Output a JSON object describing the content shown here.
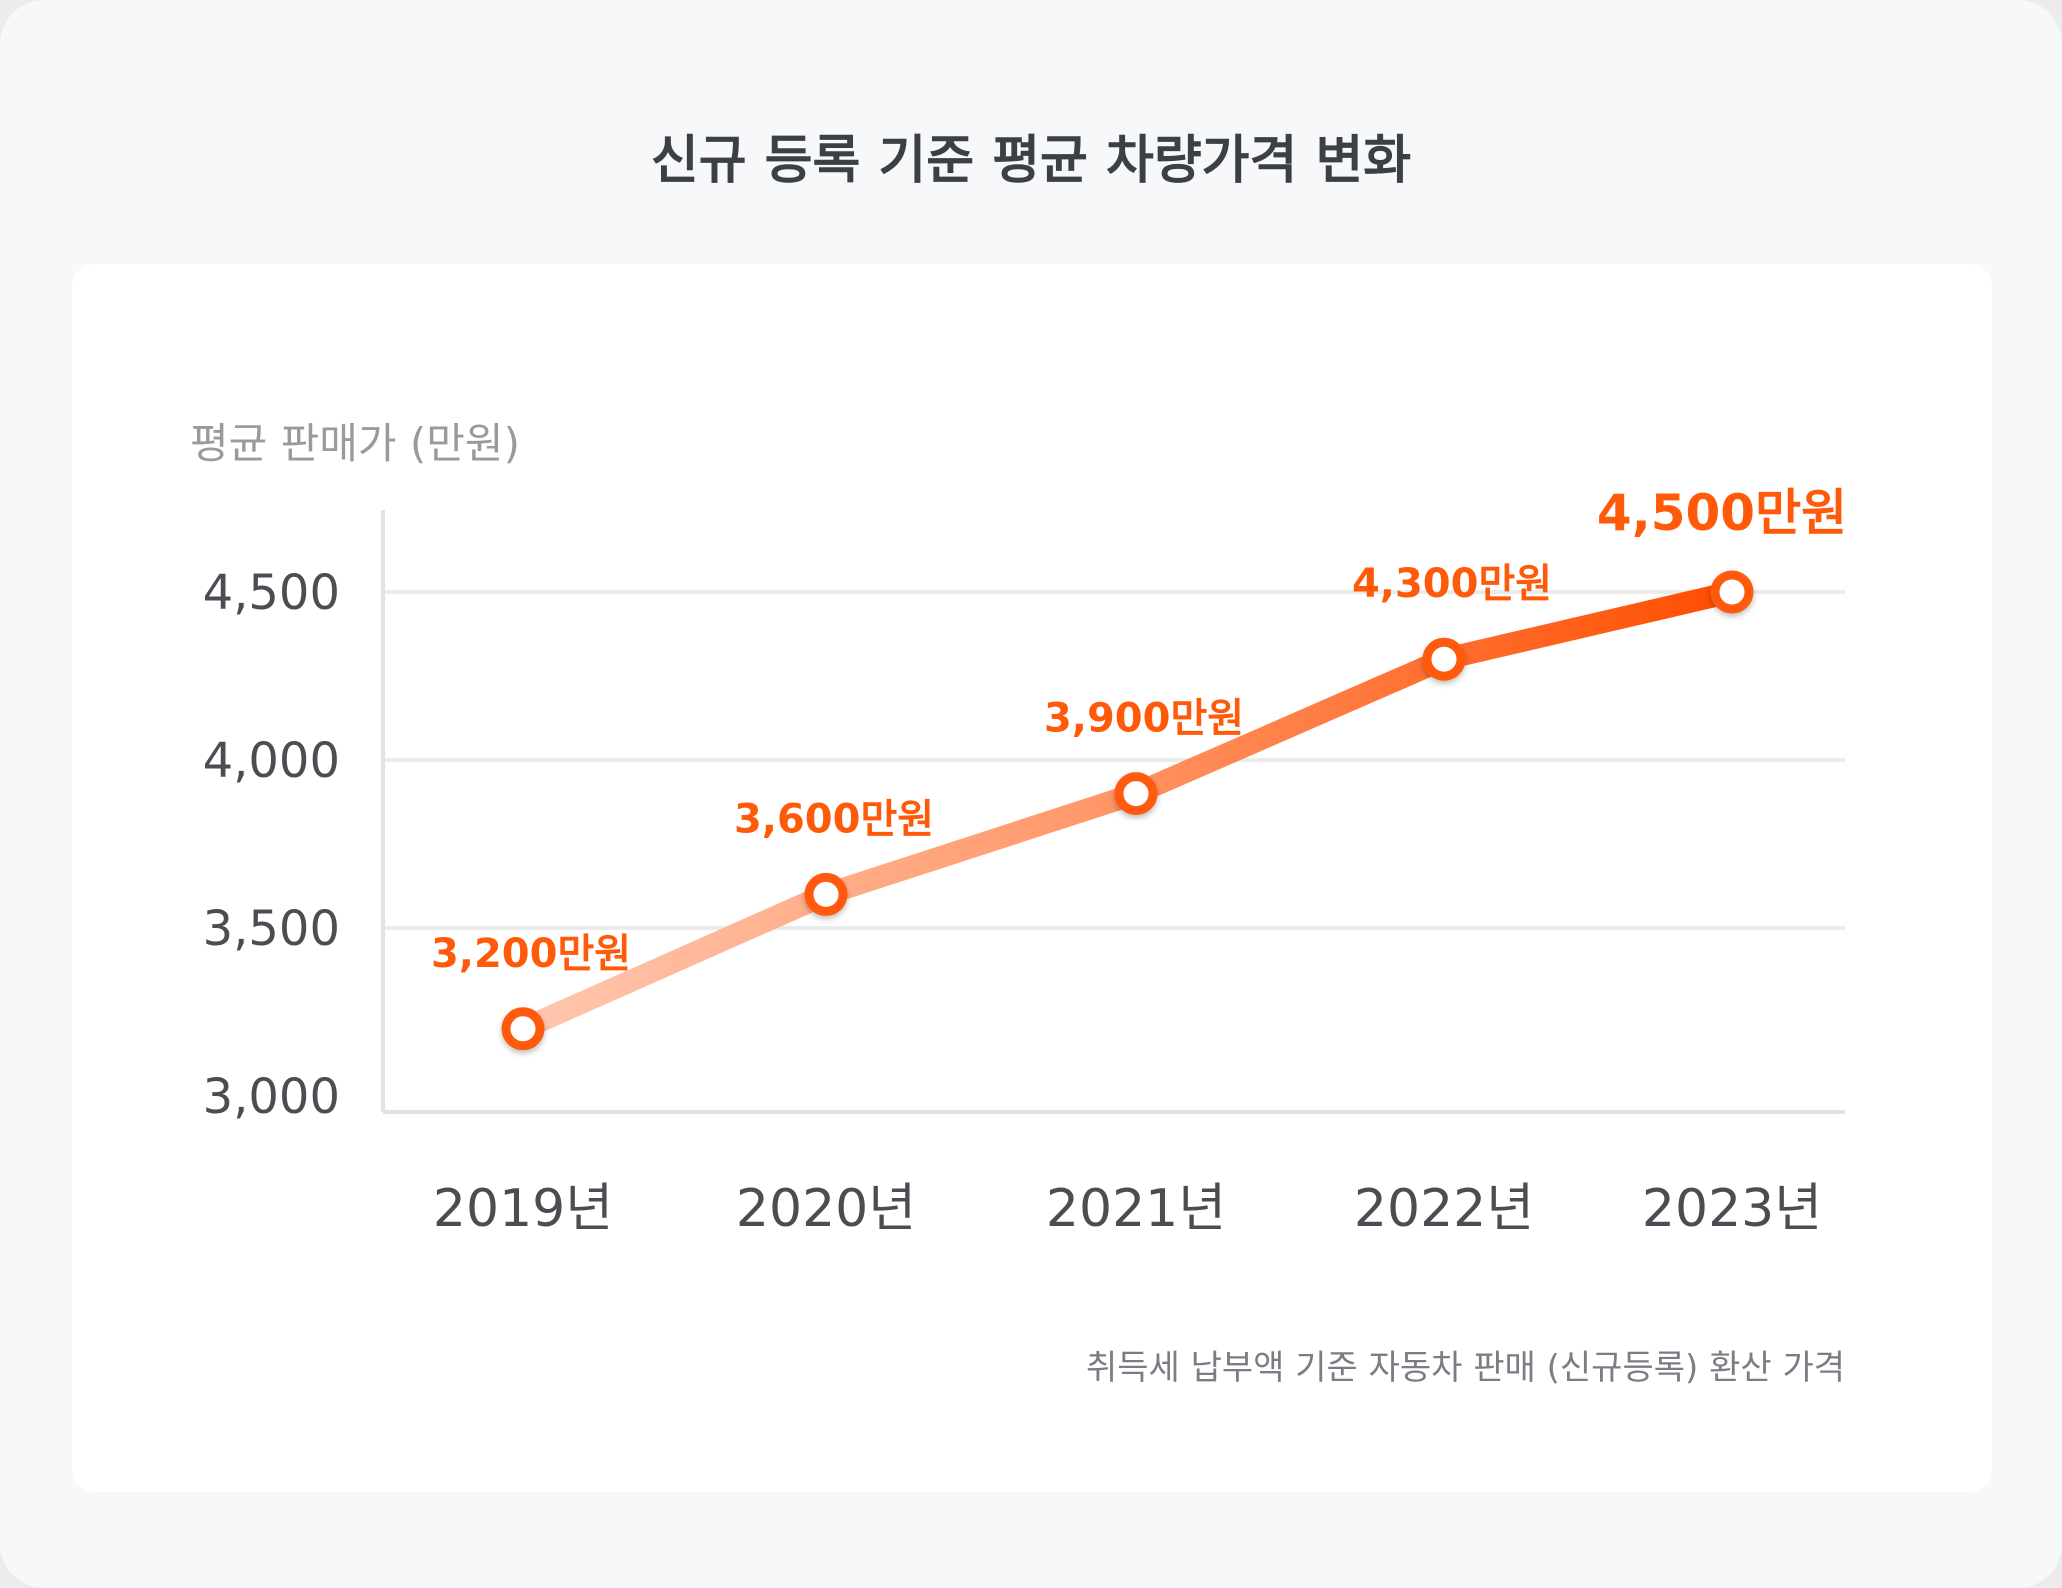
{
  "title": "신규 등록 기준 평균 차량가격 변화",
  "colors": {
    "accent": "#ff5a0a",
    "line_start": "#ffc7b0",
    "line_end": "#ff4d00",
    "grid": "#ebebeb",
    "axis": "#e2e2e2"
  },
  "chart_data": {
    "type": "line",
    "title": "신규 등록 기준 평균 차량가격 변화",
    "ylabel": "평균 판매가 (만원)",
    "xlabel": "",
    "categories": [
      "2019년",
      "2020년",
      "2021년",
      "2022년",
      "2023년"
    ],
    "series": [
      {
        "values": [
          3200,
          3600,
          3900,
          4300,
          4500
        ]
      }
    ],
    "data_labels": [
      "3,200만원",
      "3,600만원",
      "3,900만원",
      "4,300만원",
      "4,500만원"
    ],
    "yticks": [
      3000,
      3500,
      4000,
      4500
    ],
    "ytick_labels": [
      "3,000",
      "3,500",
      "4,000",
      "4,500"
    ],
    "ylim": [
      3000,
      4750
    ],
    "grid": true,
    "note": "취득세 납부액 기준 자동차 판매 (신규등록) 환산 가격"
  }
}
